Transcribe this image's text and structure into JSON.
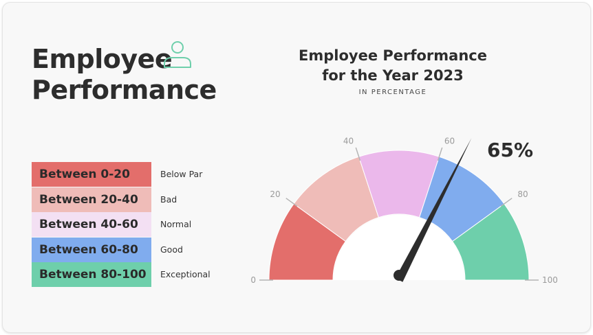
{
  "header": {
    "title_line1": "Employee",
    "title_line2": "Performance"
  },
  "chart_data": {
    "type": "gauge",
    "title_line1": "Employee Performance",
    "title_line2": "for the Year 2023",
    "subtitle": "IN PERCENTAGE",
    "range": [
      0,
      100
    ],
    "ticks": [
      0,
      20,
      40,
      60,
      80,
      100
    ],
    "tick_labels": [
      "0",
      "20",
      "40",
      "60",
      "80",
      "100"
    ],
    "bands": [
      {
        "from": 0,
        "to": 20,
        "color": "#e36e6b"
      },
      {
        "from": 20,
        "to": 40,
        "color": "#efbcb8"
      },
      {
        "from": 40,
        "to": 60,
        "color": "#ebb8eb"
      },
      {
        "from": 60,
        "to": 80,
        "color": "#80acee"
      },
      {
        "from": 80,
        "to": 100,
        "color": "#6ecfab"
      }
    ],
    "value": 65,
    "value_label": "65%",
    "legend": [
      {
        "range_label": "Between 0-20",
        "rating": "Below Par",
        "color": "#e36e6b"
      },
      {
        "range_label": "Between 20-40",
        "rating": "Bad",
        "color": "#efbcb8"
      },
      {
        "range_label": "Between 40-60",
        "rating": "Normal",
        "color": "#f3e0f3"
      },
      {
        "range_label": "Between 60-80",
        "rating": "Good",
        "color": "#80acee"
      },
      {
        "range_label": "Between 80-100",
        "rating": "Exceptional",
        "color": "#6ecfab"
      }
    ]
  },
  "colors": {
    "icon": "#6ecfab",
    "needle": "#2d2d2d",
    "tick": "#b4b4b4"
  },
  "icons": {
    "user": "user-icon"
  }
}
